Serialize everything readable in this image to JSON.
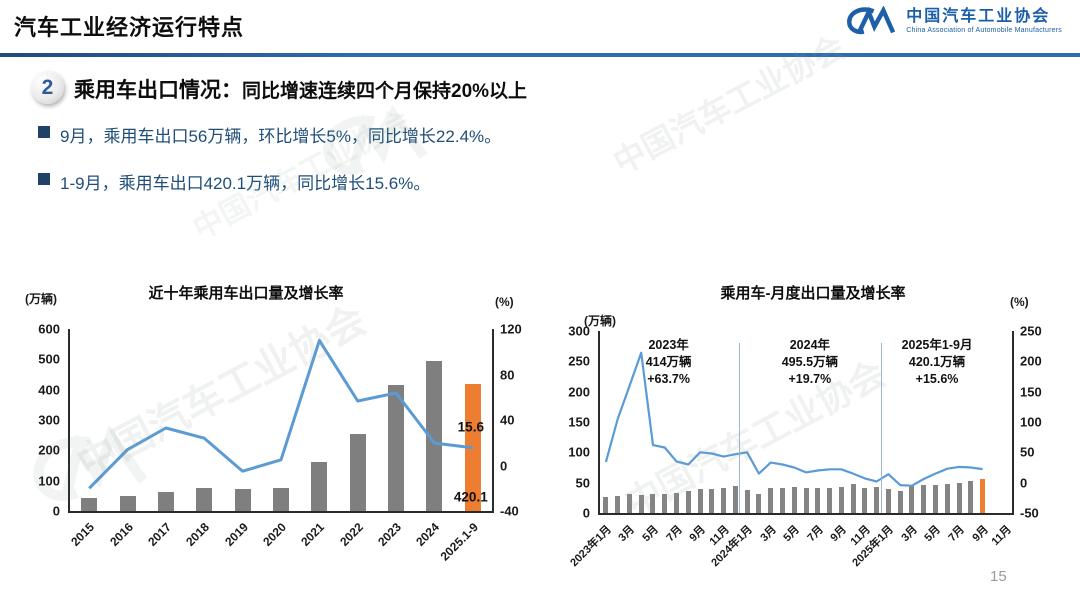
{
  "header": {
    "title": "汽车工业经济运行特点",
    "logo": {
      "mark": "CM",
      "name_cn": "中国汽车工业协会",
      "name_en": "China Association of Automobile Manufacturers"
    }
  },
  "section": {
    "number": "2",
    "title_strong": "乘用车出口情况：",
    "title_rest": "同比增速连续四个月保持20%以上",
    "bullets": [
      "9月，乘用车出口56万辆，环比增长5%，同比增长22.4%。",
      "1-9月，乘用车出口420.1万辆，同比增长15.6%。"
    ]
  },
  "footer": {
    "page_number": "15"
  },
  "watermark": {
    "text_cn": "中国汽车工业协会",
    "mark": "CM"
  },
  "colors": {
    "bar_gray": "#7f7f7f",
    "bar_orange": "#ED7D31",
    "line_blue": "#5B9BD5",
    "accent_blue": "#2e6cb0",
    "bullet_blue": "#1f4e79"
  },
  "chart_data": [
    {
      "type": "bar+line",
      "title": "近十年乘用车出口量及增长率",
      "unit_left": "(万辆)",
      "unit_right": "(%)",
      "categories": [
        "2015",
        "2016",
        "2017",
        "2018",
        "2019",
        "2020",
        "2021",
        "2022",
        "2023",
        "2024",
        "2025.1-9"
      ],
      "series": [
        {
          "type": "bar",
          "axis": "left",
          "color": "#7f7f7f",
          "highlight": {
            "index": 10,
            "color": "#ED7D31"
          },
          "values": [
            43,
            50,
            64,
            76,
            73,
            76,
            161,
            253,
            414,
            495.5,
            420.1
          ]
        },
        {
          "type": "line",
          "axis": "right",
          "color": "#5B9BD5",
          "values": [
            -20,
            14,
            33,
            24,
            -5,
            5,
            110,
            56.7,
            63.7,
            19.7,
            15.6
          ]
        }
      ],
      "left_axis": {
        "min": 0,
        "max": 600,
        "ticks": [
          600,
          500,
          400,
          300,
          200,
          100,
          0
        ]
      },
      "right_axis": {
        "min": -40,
        "max": 120,
        "ticks": [
          120,
          80,
          40,
          0,
          -40
        ]
      },
      "point_labels": [
        {
          "text": "15.6",
          "slot": 10,
          "axis": "right",
          "value": 34
        },
        {
          "text": "420.1",
          "slot": 10,
          "axis": "left",
          "value": 46
        }
      ],
      "legend": "off",
      "grid": "off"
    },
    {
      "type": "bar+line",
      "title": "乘用车-月度出口量及增长率",
      "unit_left": "(万辆)",
      "unit_right": "(%)",
      "axis_slots": 35,
      "categories": [
        "2023年1月",
        "2023年2月",
        "2023年3月",
        "2023年4月",
        "2023年5月",
        "2023年6月",
        "2023年7月",
        "2023年8月",
        "2023年9月",
        "2023年10月",
        "2023年11月",
        "2023年12月",
        "2024年1月",
        "2024年2月",
        "2024年3月",
        "2024年4月",
        "2024年5月",
        "2024年6月",
        "2024年7月",
        "2024年8月",
        "2024年9月",
        "2024年10月",
        "2024年11月",
        "2024年12月",
        "2025年1月",
        "2025年2月",
        "2025年3月",
        "2025年4月",
        "2025年5月",
        "2025年6月",
        "2025年7月",
        "2025年8月",
        "2025年9月"
      ],
      "tick_labels": [
        {
          "slot": 0,
          "text": "2023年1月"
        },
        {
          "slot": 2,
          "text": "3月"
        },
        {
          "slot": 4,
          "text": "5月"
        },
        {
          "slot": 6,
          "text": "7月"
        },
        {
          "slot": 8,
          "text": "9月"
        },
        {
          "slot": 10,
          "text": "11月"
        },
        {
          "slot": 12,
          "text": "2024年1月"
        },
        {
          "slot": 14,
          "text": "3月"
        },
        {
          "slot": 16,
          "text": "5月"
        },
        {
          "slot": 18,
          "text": "7月"
        },
        {
          "slot": 20,
          "text": "9月"
        },
        {
          "slot": 22,
          "text": "11月"
        },
        {
          "slot": 24,
          "text": "2025年1月"
        },
        {
          "slot": 26,
          "text": "3月"
        },
        {
          "slot": 28,
          "text": "5月"
        },
        {
          "slot": 30,
          "text": "7月"
        },
        {
          "slot": 32,
          "text": "9月"
        },
        {
          "slot": 34,
          "text": "11月"
        }
      ],
      "series": [
        {
          "type": "bar",
          "axis": "left",
          "color": "#848484",
          "highlight": {
            "index": 32,
            "color": "#ED7D31"
          },
          "values": [
            27,
            28,
            32,
            30,
            32,
            31,
            33,
            36,
            39,
            40,
            41,
            45,
            38,
            32,
            42,
            42,
            43,
            41,
            41,
            42,
            43,
            47,
            41,
            43.5,
            40,
            37,
            45,
            46,
            46,
            47,
            50,
            53.1,
            56
          ]
        },
        {
          "type": "line",
          "axis": "right",
          "color": "#5B9BD5",
          "values": [
            34,
            105,
            159,
            214,
            62,
            58,
            35,
            30,
            50,
            48,
            43,
            47,
            50,
            15,
            33,
            30,
            25,
            17,
            20,
            22,
            22,
            15,
            7,
            2,
            14,
            -4,
            -5,
            6,
            15,
            23,
            26,
            25,
            22.4
          ]
        }
      ],
      "left_axis": {
        "min": 0,
        "max": 300,
        "ticks": [
          300,
          250,
          200,
          150,
          100,
          50,
          0
        ]
      },
      "right_axis": {
        "min": -50,
        "max": 250,
        "ticks": [
          250,
          200,
          150,
          100,
          50,
          0,
          -50
        ]
      },
      "annotations": [
        {
          "lines": [
            "2023年",
            "414万辆",
            "+63.7%"
          ],
          "center_slot": 5.5
        },
        {
          "lines": [
            "2024年",
            "495.5万辆",
            "+19.7%"
          ],
          "center_slot": 17.5
        },
        {
          "lines": [
            "2025年1-9月",
            "420.1万辆",
            "+15.6%"
          ],
          "center_slot": 28.3
        }
      ],
      "dividers": [
        {
          "at_slot": 11.5
        },
        {
          "at_slot": 23.5
        }
      ],
      "legend": "off",
      "grid": "off"
    }
  ]
}
